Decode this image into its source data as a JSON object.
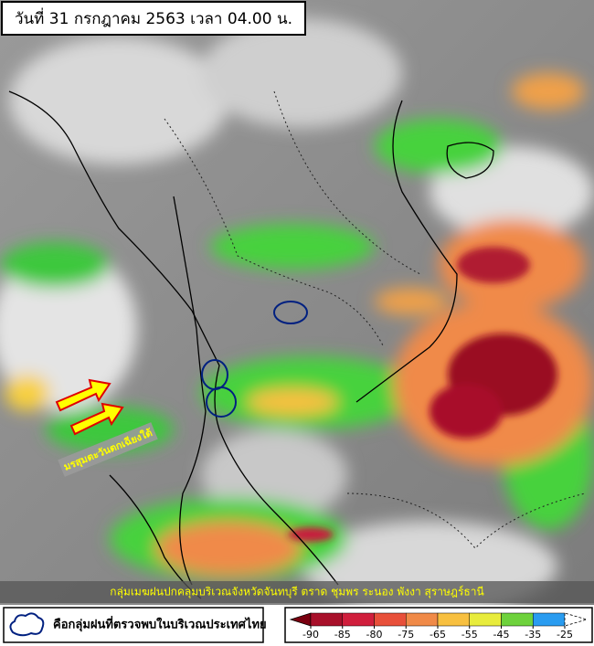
{
  "header": {
    "title": "วันที่ 31 กรกฎาคม 2563 เวลา 04.00 น."
  },
  "annotation": {
    "monsoon": "มรสุมตะวันตกเฉียงใต้",
    "caption": "กลุ่มเมฆฝนปกคลุมบริเวณจังหวัดจันทบุรี ตราด ชุมพร ระนอง พังงา สุราษฎร์ธานี"
  },
  "legend": {
    "label": "คือกลุ่มฝนที่ตรวจพบในบริเวณประเทศไทย"
  },
  "colorbar": {
    "ticks": [
      -90,
      -85,
      -80,
      -75,
      -65,
      -55,
      -45,
      -35,
      -25
    ],
    "colors": [
      "#7a0010",
      "#a8102a",
      "#d01e3c",
      "#e8503a",
      "#f08a48",
      "#f8c040",
      "#e8ec3c",
      "#6ed23c",
      "#2a9cf0",
      "#ffffff"
    ]
  }
}
